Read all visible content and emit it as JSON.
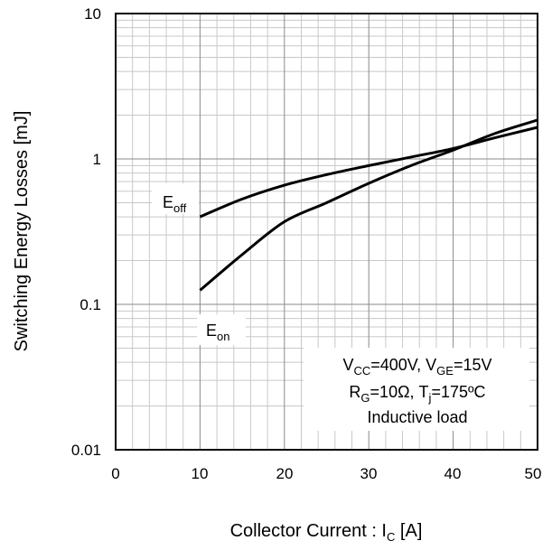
{
  "chart_data": {
    "type": "line",
    "xlabel": {
      "main": "Collector Current : I",
      "sub": "C",
      "tail": " [A]"
    },
    "ylabel": "Switching Energy Losses [mJ]",
    "xlim": [
      0,
      50
    ],
    "ylim": [
      0.01,
      10
    ],
    "yscale": "log",
    "grid": true,
    "x_ticks": [
      "0",
      "10",
      "20",
      "30",
      "40",
      "50"
    ],
    "y_ticks": [
      "0.01",
      "0.1",
      "1",
      "10"
    ],
    "series": [
      {
        "name": "off",
        "label_main": "E",
        "label_sub": "off",
        "x": [
          10,
          15,
          20,
          25,
          30,
          35,
          40,
          45,
          50
        ],
        "y": [
          0.4,
          0.53,
          0.66,
          0.78,
          0.9,
          1.03,
          1.18,
          1.4,
          1.65
        ]
      },
      {
        "name": "on",
        "label_main": "E",
        "label_sub": "on",
        "x": [
          10,
          15,
          20,
          25,
          30,
          35,
          40,
          45,
          50
        ],
        "y": [
          0.125,
          0.22,
          0.37,
          0.5,
          0.68,
          0.9,
          1.15,
          1.5,
          1.85
        ]
      }
    ],
    "annotation": {
      "line1": {
        "a": "V",
        "a_sub": "CC",
        "b": "=400V, V",
        "b_sub": "GE",
        "c": "=15V"
      },
      "line2": {
        "a": "R",
        "a_sub": "G",
        "b": "=10Ω, T",
        "b_sub": "j",
        "c": "=175ºC"
      },
      "line3": "Inductive load"
    }
  }
}
